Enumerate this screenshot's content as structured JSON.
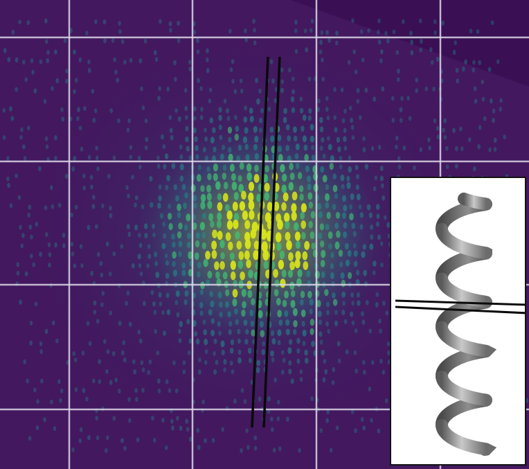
{
  "figure": {
    "kind": "diffraction-pattern-with-helix-inset",
    "colors": {
      "background": "#43185f",
      "background_dark": "#3b0f55",
      "corner_region": "#47105f",
      "grid": "#d9d6e6",
      "spot_low": "#1f8e8b",
      "spot_mid": "#3fbf72",
      "spot_high": "#d9e61a",
      "guide_lines": "#0a0a0a",
      "inset_background": "#ffffff",
      "inset_border": "#111111",
      "helix_shade": "#8a8a8a"
    },
    "icons": [
      "helix-illustration"
    ]
  }
}
